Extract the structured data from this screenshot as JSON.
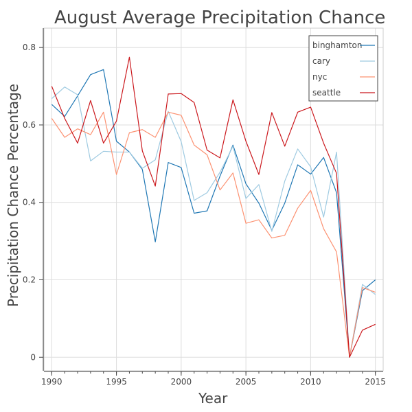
{
  "chart_data": {
    "type": "line",
    "title": "August Average Precipitation Chance",
    "xlabel": "Year",
    "ylabel": "Precipitation Chance Percentage",
    "x": [
      1990,
      1991,
      1992,
      1993,
      1994,
      1995,
      1996,
      1997,
      1998,
      1999,
      2000,
      2001,
      2002,
      2003,
      2004,
      2005,
      2006,
      2007,
      2008,
      2009,
      2010,
      2011,
      2012,
      2013,
      2014,
      2015
    ],
    "xticks": [
      1990,
      1995,
      2000,
      2005,
      2010,
      2015
    ],
    "yticks": [
      0,
      0.2,
      0.4,
      0.6,
      0.8
    ],
    "ytick_labels": [
      "0",
      "0.2",
      "0.4",
      "0.6",
      "0.8"
    ],
    "xlim": [
      1989.4,
      2015.6
    ],
    "ylim": [
      -0.035,
      0.85
    ],
    "grid": true,
    "legend_position": "top-right",
    "series": [
      {
        "name": "binghamton",
        "color": "#1f77b4",
        "values": [
          0.653,
          0.622,
          0.675,
          0.73,
          0.743,
          0.558,
          0.53,
          0.485,
          0.298,
          0.503,
          0.49,
          0.372,
          0.378,
          0.468,
          0.548,
          0.448,
          0.398,
          0.328,
          0.398,
          0.497,
          0.473,
          0.516,
          0.425,
          0.0,
          0.172,
          0.2
        ]
      },
      {
        "name": "cary",
        "color": "#9ecae1",
        "values": [
          0.668,
          0.698,
          0.678,
          0.507,
          0.532,
          0.53,
          0.53,
          0.488,
          0.51,
          0.635,
          0.557,
          0.405,
          0.425,
          0.478,
          0.545,
          0.41,
          0.446,
          0.325,
          0.455,
          0.538,
          0.492,
          0.362,
          0.53,
          0.0,
          0.188,
          0.162
        ]
      },
      {
        "name": "nyc",
        "color": "#fc9272",
        "values": [
          0.617,
          0.568,
          0.59,
          0.575,
          0.633,
          0.472,
          0.58,
          0.588,
          0.568,
          0.633,
          0.625,
          0.548,
          0.523,
          0.432,
          0.476,
          0.346,
          0.355,
          0.308,
          0.315,
          0.385,
          0.431,
          0.332,
          0.272,
          0.0,
          0.18,
          0.168
        ]
      },
      {
        "name": "seattle",
        "color": "#cb181d",
        "values": [
          0.7,
          0.617,
          0.553,
          0.663,
          0.553,
          0.61,
          0.775,
          0.533,
          0.442,
          0.68,
          0.681,
          0.658,
          0.535,
          0.515,
          0.665,
          0.558,
          0.472,
          0.632,
          0.545,
          0.633,
          0.646,
          0.553,
          0.475,
          0.0,
          0.07,
          0.085
        ]
      }
    ]
  }
}
